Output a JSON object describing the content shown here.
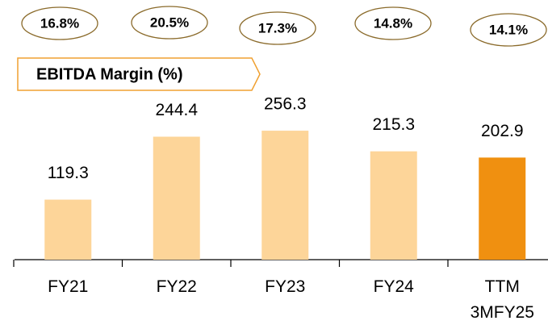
{
  "chart_data": {
    "type": "bar",
    "categories": [
      "FY21",
      "FY22",
      "FY23",
      "FY24",
      "TTM 3MFY25"
    ],
    "values": [
      119.3,
      244.4,
      256.3,
      215.3,
      202.9
    ],
    "colors": [
      "#fdd599",
      "#fdd599",
      "#fdd599",
      "#fdd599",
      "#f09010"
    ],
    "ylim": [
      0,
      500
    ],
    "annotation_title": "EBITDA Margin (%)",
    "margin_labels": [
      "16.8%",
      "20.5%",
      "17.3%",
      "14.8%",
      "14.1%"
    ]
  }
}
